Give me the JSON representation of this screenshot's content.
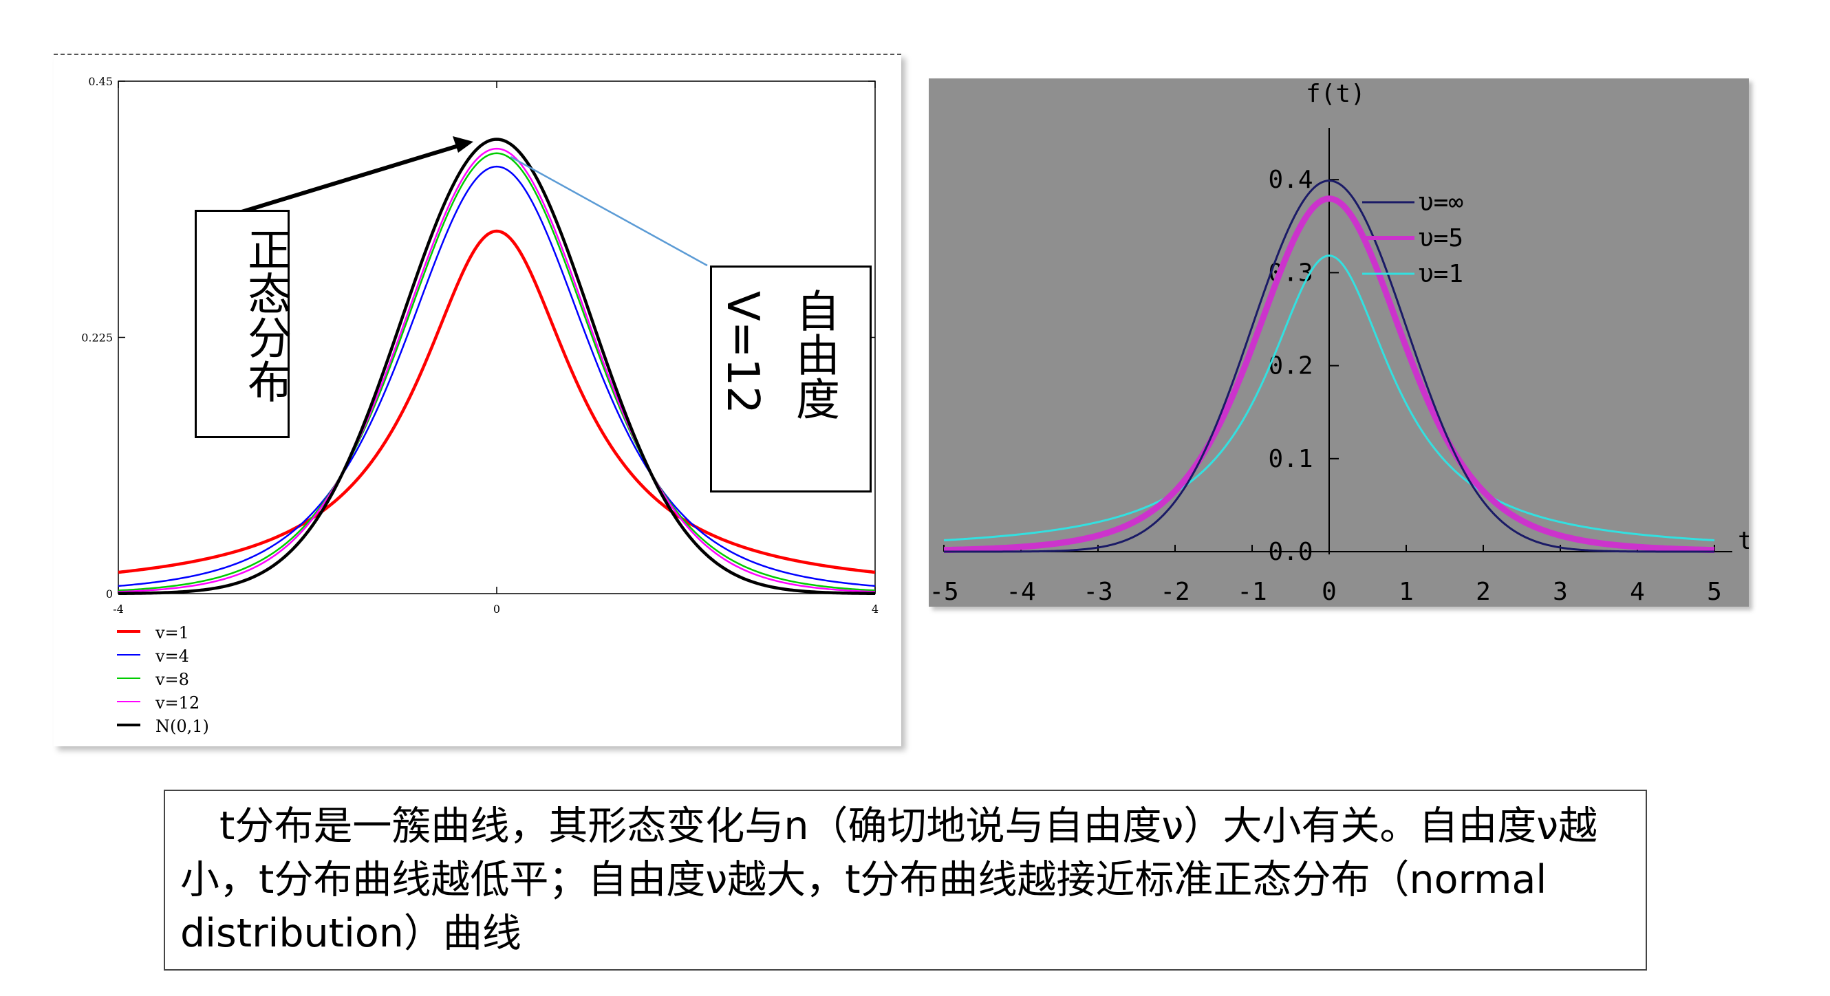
{
  "left_chart": {
    "callout_normal": "正态分布",
    "callout_dof_line1": "自由度",
    "callout_dof_line2": "V=12",
    "chart_data": {
      "type": "line",
      "xlim": [
        -4,
        4
      ],
      "ylim": [
        0,
        0.45
      ],
      "x_ticks": [
        "-4",
        "0",
        "4"
      ],
      "y_ticks": [
        "0.45",
        "0.225",
        "0"
      ],
      "series": [
        {
          "name": "v=1",
          "df": 1,
          "color": "#ff0000"
        },
        {
          "name": "v=4",
          "df": 4,
          "color": "#0000ff"
        },
        {
          "name": "v=8",
          "df": 8,
          "color": "#00cc00"
        },
        {
          "name": "v=12",
          "df": 12,
          "color": "#ff00ff"
        },
        {
          "name": "N(0,1)",
          "df": "inf",
          "color": "#000000"
        }
      ]
    }
  },
  "right_chart": {
    "chart_data": {
      "type": "line",
      "xlabel": "t",
      "ylabel": "f(t)",
      "xlim": [
        -5,
        5
      ],
      "ylim": [
        0,
        0.4
      ],
      "x_ticks": [
        "-5",
        "-4",
        "-3",
        "-2",
        "-1",
        "0",
        "1",
        "2",
        "3",
        "4",
        "5"
      ],
      "y_ticks": [
        "0.4",
        "0.3",
        "0.2",
        "0.1",
        "0.0"
      ],
      "series": [
        {
          "name": "υ=∞",
          "df": "inf",
          "color": "#1a1a66"
        },
        {
          "name": "υ=5",
          "df": 5,
          "color": "#cc33cc"
        },
        {
          "name": "υ=1",
          "df": 1,
          "color": "#33e0e0"
        }
      ]
    }
  },
  "caption": "　t分布是一簇曲线，其形态变化与n（确切地说与自由度ν）大小有关。自由度ν越小，t分布曲线越低平；自由度ν越大，t分布曲线越接近标准正态分布（normal distribution）曲线"
}
